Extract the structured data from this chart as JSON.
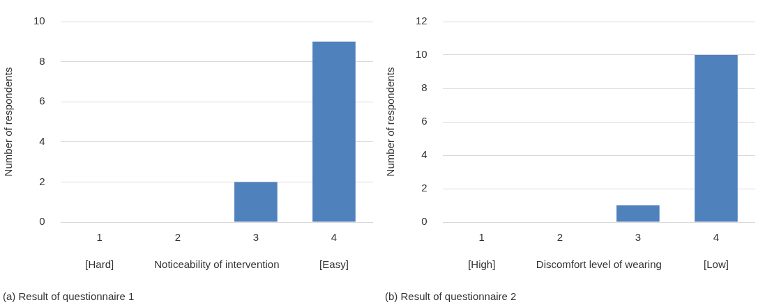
{
  "chart_data": [
    {
      "type": "bar",
      "title": "(a) Result of questionnaire 1",
      "xlabel": "Noticeability of intervention",
      "ylabel": "Number of respondents",
      "categories": [
        "1",
        "2",
        "3",
        "4"
      ],
      "values": [
        0,
        0,
        2,
        9
      ],
      "color": "#4f81bd",
      "ylim": [
        0,
        10
      ],
      "yticks": [
        0,
        2,
        4,
        6,
        8,
        10
      ],
      "grid": "y",
      "annotations": [
        "[Hard]",
        "[Easy]"
      ]
    },
    {
      "type": "bar",
      "title": "(b) Result of questionnaire 2",
      "xlabel": "Discomfort level of wearing",
      "ylabel": "Number of respondents",
      "categories": [
        "1",
        "2",
        "3",
        "4"
      ],
      "values": [
        0,
        0,
        1,
        10
      ],
      "color": "#4f81bd",
      "ylim": [
        0,
        12
      ],
      "yticks": [
        0,
        2,
        4,
        6,
        8,
        10,
        12
      ],
      "grid": "y",
      "annotations": [
        "[High]",
        "[Low]"
      ]
    }
  ]
}
